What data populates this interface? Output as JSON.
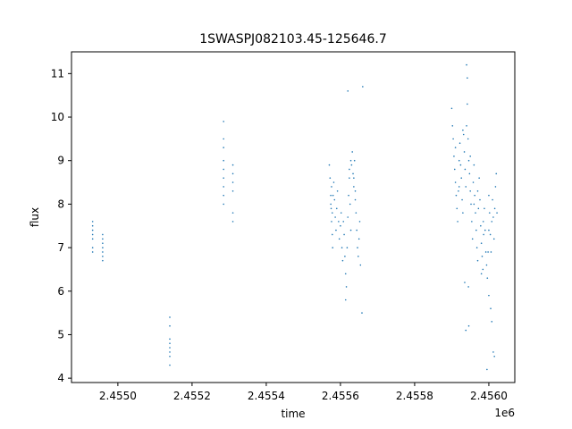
{
  "chart_data": {
    "type": "scatter",
    "title": "1SWASPJ082103.45-125646.7",
    "xlabel": "time",
    "ylabel": "flux",
    "x_offset_label": "1e6",
    "xlim": [
      2454875,
      2456070
    ],
    "ylim": [
      3.9,
      11.5
    ],
    "x_ticks": [
      2455000,
      2455200,
      2455400,
      2455600,
      2455800,
      2456000
    ],
    "x_tick_labels": [
      "2.4550",
      "2.4552",
      "2.4554",
      "2.4556",
      "2.4558",
      "2.4560"
    ],
    "y_ticks": [
      4,
      5,
      6,
      7,
      8,
      9,
      10,
      11
    ],
    "y_tick_labels": [
      "4",
      "5",
      "6",
      "7",
      "8",
      "9",
      "10",
      "11"
    ],
    "grid": false,
    "marker_color": "#1f77b4",
    "series": [
      {
        "points": [
          [
            2454932,
            7.5
          ],
          [
            2454932,
            7.4
          ],
          [
            2454932,
            7.3
          ],
          [
            2454932,
            7.2
          ],
          [
            2454932,
            7.0
          ],
          [
            2454932,
            6.9
          ],
          [
            2454932,
            7.6
          ],
          [
            2454959,
            7.1
          ],
          [
            2454959,
            7.0
          ],
          [
            2454959,
            6.9
          ],
          [
            2454959,
            6.8
          ],
          [
            2454959,
            6.7
          ],
          [
            2454959,
            7.3
          ],
          [
            2454959,
            7.2
          ],
          [
            2455140,
            5.4
          ],
          [
            2455140,
            5.2
          ],
          [
            2455140,
            4.9
          ],
          [
            2455140,
            4.8
          ],
          [
            2455140,
            4.7
          ],
          [
            2455140,
            4.5
          ],
          [
            2455140,
            4.3
          ],
          [
            2455140,
            4.6
          ],
          [
            2455285,
            9.9
          ],
          [
            2455285,
            9.5
          ],
          [
            2455285,
            9.3
          ],
          [
            2455285,
            9.0
          ],
          [
            2455285,
            8.8
          ],
          [
            2455285,
            8.6
          ],
          [
            2455285,
            8.4
          ],
          [
            2455285,
            8.2
          ],
          [
            2455285,
            8.0
          ],
          [
            2455310,
            8.9
          ],
          [
            2455310,
            8.7
          ],
          [
            2455310,
            8.5
          ],
          [
            2455310,
            8.3
          ],
          [
            2455310,
            7.8
          ],
          [
            2455310,
            7.6
          ],
          [
            2455570,
            8.9
          ],
          [
            2455572,
            8.6
          ],
          [
            2455574,
            8.2
          ],
          [
            2455575,
            7.9
          ],
          [
            2455576,
            7.6
          ],
          [
            2455578,
            7.3
          ],
          [
            2455579,
            7.0
          ],
          [
            2455582,
            8.5
          ],
          [
            2455584,
            8.1
          ],
          [
            2455586,
            7.7
          ],
          [
            2455588,
            7.4
          ],
          [
            2455590,
            7.9
          ],
          [
            2455592,
            8.3
          ],
          [
            2455595,
            7.6
          ],
          [
            2455597,
            7.2
          ],
          [
            2455600,
            7.5
          ],
          [
            2455602,
            7.8
          ],
          [
            2455604,
            7.0
          ],
          [
            2455606,
            6.7
          ],
          [
            2455608,
            7.6
          ],
          [
            2455610,
            7.3
          ],
          [
            2455612,
            6.8
          ],
          [
            2455614,
            6.4
          ],
          [
            2455616,
            6.1
          ],
          [
            2455618,
            7.0
          ],
          [
            2455620,
            7.7
          ],
          [
            2455622,
            8.2
          ],
          [
            2455624,
            8.6
          ],
          [
            2455626,
            8.0
          ],
          [
            2455628,
            7.4
          ],
          [
            2455630,
            8.9
          ],
          [
            2455632,
            9.2
          ],
          [
            2455634,
            8.7
          ],
          [
            2455636,
            8.4
          ],
          [
            2455638,
            9.0
          ],
          [
            2455640,
            8.1
          ],
          [
            2455642,
            7.8
          ],
          [
            2455644,
            7.4
          ],
          [
            2455646,
            7.0
          ],
          [
            2455648,
            6.8
          ],
          [
            2455650,
            7.2
          ],
          [
            2455652,
            7.6
          ],
          [
            2455654,
            6.6
          ],
          [
            2455614,
            5.8
          ],
          [
            2455620,
            10.6
          ],
          [
            2455660,
            10.7
          ],
          [
            2455658,
            5.5
          ],
          [
            2455574,
            8.0
          ],
          [
            2455576,
            8.4
          ],
          [
            2455578,
            7.8
          ],
          [
            2455580,
            8.2
          ],
          [
            2455624,
            8.8
          ],
          [
            2455628,
            9.0
          ],
          [
            2455636,
            8.6
          ],
          [
            2455640,
            8.3
          ],
          [
            2455900,
            10.2
          ],
          [
            2455902,
            9.8
          ],
          [
            2455904,
            9.5
          ],
          [
            2455906,
            9.1
          ],
          [
            2455908,
            8.8
          ],
          [
            2455910,
            8.5
          ],
          [
            2455912,
            8.2
          ],
          [
            2455914,
            7.9
          ],
          [
            2455916,
            7.6
          ],
          [
            2455918,
            8.3
          ],
          [
            2455920,
            9.0
          ],
          [
            2455922,
            9.4
          ],
          [
            2455924,
            8.9
          ],
          [
            2455926,
            8.6
          ],
          [
            2455928,
            8.1
          ],
          [
            2455930,
            7.8
          ],
          [
            2455932,
            9.6
          ],
          [
            2455934,
            9.2
          ],
          [
            2455936,
            8.8
          ],
          [
            2455938,
            8.4
          ],
          [
            2455940,
            9.8
          ],
          [
            2455942,
            10.3
          ],
          [
            2455944,
            9.5
          ],
          [
            2455946,
            9.0
          ],
          [
            2455948,
            8.7
          ],
          [
            2455950,
            8.3
          ],
          [
            2455952,
            8.0
          ],
          [
            2455954,
            7.6
          ],
          [
            2455956,
            7.2
          ],
          [
            2455958,
            8.5
          ],
          [
            2455960,
            8.9
          ],
          [
            2455962,
            8.2
          ],
          [
            2455964,
            7.8
          ],
          [
            2455966,
            7.4
          ],
          [
            2455968,
            7.0
          ],
          [
            2455970,
            6.7
          ],
          [
            2455972,
            7.9
          ],
          [
            2455974,
            8.6
          ],
          [
            2455976,
            8.1
          ],
          [
            2455978,
            7.5
          ],
          [
            2455980,
            7.1
          ],
          [
            2455982,
            6.8
          ],
          [
            2455984,
            6.5
          ],
          [
            2455986,
            7.3
          ],
          [
            2455988,
            7.9
          ],
          [
            2455990,
            7.4
          ],
          [
            2455992,
            6.9
          ],
          [
            2455994,
            6.6
          ],
          [
            2455996,
            6.3
          ],
          [
            2455998,
            6.9
          ],
          [
            2456000,
            7.4
          ],
          [
            2456002,
            7.8
          ],
          [
            2456004,
            7.3
          ],
          [
            2456006,
            6.9
          ],
          [
            2456008,
            7.6
          ],
          [
            2456010,
            8.1
          ],
          [
            2456012,
            7.7
          ],
          [
            2456014,
            7.2
          ],
          [
            2456016,
            7.9
          ],
          [
            2456018,
            8.4
          ],
          [
            2456020,
            8.7
          ],
          [
            2456022,
            7.8
          ],
          [
            2455940,
            11.2
          ],
          [
            2455942,
            10.9
          ],
          [
            2455935,
            6.2
          ],
          [
            2455945,
            6.1
          ],
          [
            2455938,
            5.1
          ],
          [
            2455946,
            5.2
          ],
          [
            2455980,
            6.4
          ],
          [
            2456000,
            5.9
          ],
          [
            2456005,
            5.6
          ],
          [
            2456008,
            5.3
          ],
          [
            2455995,
            4.2
          ],
          [
            2456012,
            4.6
          ],
          [
            2456015,
            4.5
          ],
          [
            2455910,
            9.3
          ],
          [
            2455920,
            8.4
          ],
          [
            2455930,
            9.7
          ],
          [
            2455950,
            9.1
          ],
          [
            2455960,
            8.0
          ],
          [
            2455970,
            8.3
          ],
          [
            2455985,
            7.6
          ],
          [
            2456000,
            8.2
          ]
        ]
      }
    ]
  }
}
